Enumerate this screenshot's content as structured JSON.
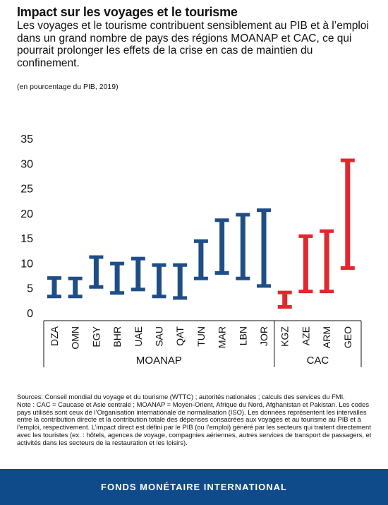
{
  "header": {
    "title": "Impact sur les voyages et le tourisme",
    "subtitle": "Les voyages et le tourisme contribuent sensiblement au PIB et à l’emploi dans un grand nombre de pays des régions MOANAP et CAC, ce qui pourrait prolonger les effets de la crise en cas de maintien du confinement.",
    "unit": "(en pourcentage du PIB, 2019)"
  },
  "chart_data": {
    "type": "bar",
    "subtype": "floating-range",
    "ylim": [
      0,
      35
    ],
    "yticks": [
      0,
      5,
      10,
      15,
      20,
      25,
      30,
      35
    ],
    "grid": false,
    "categories": [
      "DZA",
      "OMN",
      "EGY",
      "BHR",
      "UAE",
      "SAU",
      "QAT",
      "TUN",
      "MAR",
      "LBN",
      "JOR",
      "KGZ",
      "AZE",
      "ARM",
      "GEO"
    ],
    "low": [
      3.3,
      3.3,
      5.2,
      4.0,
      4.7,
      3.3,
      3.0,
      6.9,
      8.0,
      6.9,
      5.4,
      1.2,
      4.3,
      4.3,
      9.0
    ],
    "high": [
      7.0,
      6.9,
      11.2,
      9.9,
      10.9,
      9.6,
      9.6,
      14.4,
      18.6,
      19.7,
      20.6,
      4.1,
      15.4,
      16.4,
      30.6
    ],
    "groups": [
      {
        "name": "MOANAP",
        "count": 11,
        "color": "#1f4e87"
      },
      {
        "name": "CAC",
        "count": 4,
        "color": "#e0282e"
      }
    ]
  },
  "notes": {
    "sources": "Sources: Conseil mondial du voyage et du tourisme (WTTC) ; autorités nationales ; calculs des services du FMI.",
    "note": "Note : CAC = Caucase et Asie centrale ; MOANAP = Moyen-Orient, Afrique du Nord, Afghanistan et Pakistan. Les codes pays utilisés sont ceux de l’Organisation internationale de normalisation (ISO). Les données représentent les intervalles entre la contribution directe et la contribution totale des dépenses consacrées aux voyages et au tourisme au PIB et à l’emploi, respectivement. L’impact direct est défini par le PIB (ou l’emploi) généré par les secteurs qui traitent directement avec les touristes (ex. : hôtels, agences de voyage, compagnies aériennes, autres services de transport de passagers, et activités dans les secteurs de la restauration et les loisirs)."
  },
  "footer": {
    "label": "FONDS MONÉTAIRE INTERNATIONAL"
  }
}
